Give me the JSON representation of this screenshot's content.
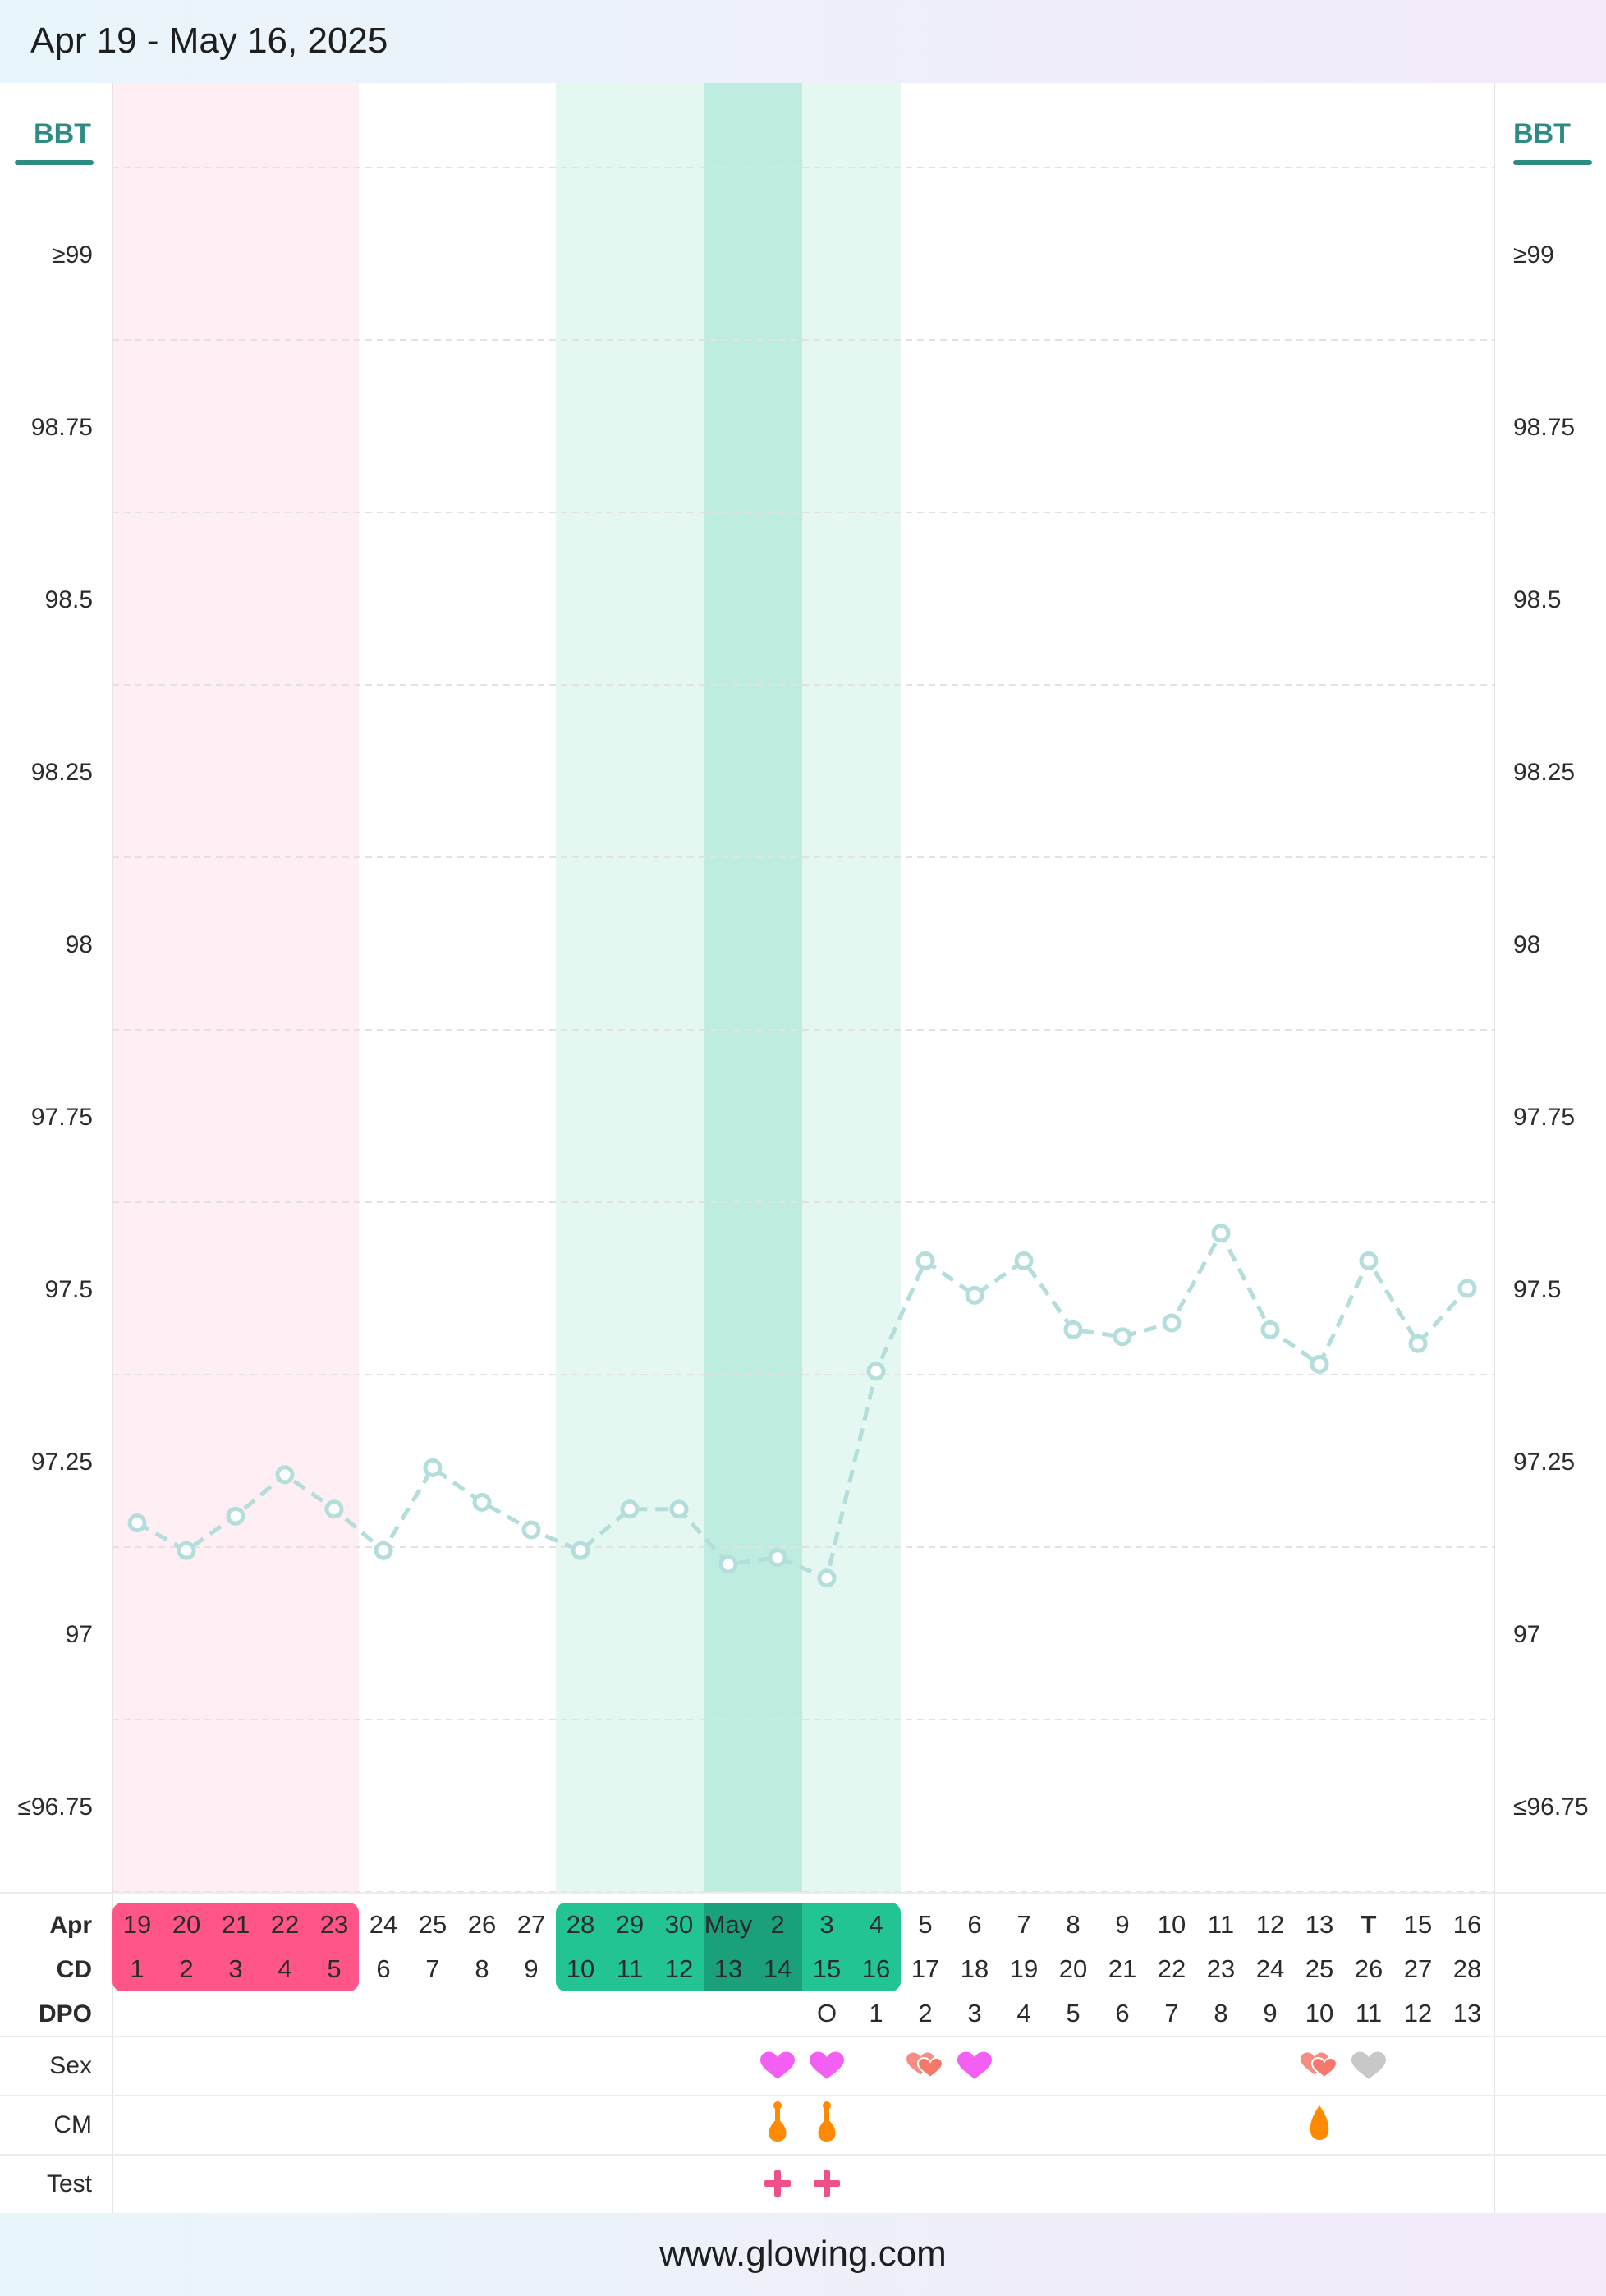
{
  "header": {
    "title": "Apr 19 - May 16, 2025"
  },
  "footer": {
    "url": "www.glowing.com"
  },
  "colors": {
    "period": "#ff5588",
    "period_bg": "#ffeef4",
    "fertile": "#22c493",
    "fertile_bg": "#e5f7f1",
    "peak_bg": "#bfece0",
    "peak": "#1aa07a",
    "bbt_line": "#b3dedb",
    "bbt_label": "#2e8b83",
    "today": "#5b5bd6",
    "sex": "#f25ff2",
    "sex_alt": "#f4796b",
    "sex_unknown": "#c8c8c8",
    "cm": "#ff8a00",
    "test": "#f0508a"
  },
  "chart_data": {
    "type": "line",
    "y_axis_title": "BBT",
    "ylim": [
      96.75,
      99
    ],
    "y_tick_labels": [
      "≥99",
      "98.75",
      "98.5",
      "98.25",
      "98",
      "97.75",
      "97.5",
      "97.25",
      "97",
      "≤96.75"
    ],
    "grid": "dashed horizontal",
    "rows": {
      "date_label": "Apr",
      "cd_label": "CD",
      "dpo_label": "DPO",
      "sex_label": "Sex",
      "cm_label": "CM",
      "test_label": "Test"
    },
    "dates": [
      "19",
      "20",
      "21",
      "22",
      "23",
      "24",
      "25",
      "26",
      "27",
      "28",
      "29",
      "30",
      "May",
      "2",
      "3",
      "4",
      "5",
      "6",
      "7",
      "8",
      "9",
      "10",
      "11",
      "12",
      "13",
      "T",
      "15",
      "16"
    ],
    "cycle_days": [
      "1",
      "2",
      "3",
      "4",
      "5",
      "6",
      "7",
      "8",
      "9",
      "10",
      "11",
      "12",
      "13",
      "14",
      "15",
      "16",
      "17",
      "18",
      "19",
      "20",
      "21",
      "22",
      "23",
      "24",
      "25",
      "26",
      "27",
      "28"
    ],
    "dpo": [
      "",
      "",
      "",
      "",
      "",
      "",
      "",
      "",
      "",
      "",
      "",
      "",
      "",
      "",
      "O",
      "1",
      "2",
      "3",
      "4",
      "5",
      "6",
      "7",
      "8",
      "9",
      "10",
      "11",
      "12",
      "13"
    ],
    "series": [
      {
        "values": [
          97.16,
          97.12,
          97.17,
          97.23,
          97.18,
          97.12,
          97.24,
          97.19,
          97.15,
          97.12,
          97.18,
          97.18,
          97.1,
          97.11,
          97.08,
          97.38,
          97.54,
          97.49,
          97.54,
          97.44,
          97.43,
          97.45,
          97.58,
          97.44,
          97.39,
          97.54,
          97.42,
          97.5
        ]
      }
    ],
    "period_days": [
      1,
      5
    ],
    "fertile_window": [
      10,
      16
    ],
    "peak_days": [
      13,
      14
    ],
    "ovulation_day": 15,
    "today_index": 26,
    "sex_events": [
      {
        "day": 14,
        "icon": "heart-icon",
        "color": "#f25ff2"
      },
      {
        "day": 15,
        "icon": "heart-icon",
        "color": "#f25ff2"
      },
      {
        "day": 17,
        "icon": "double-heart-icon",
        "color": "#f4796b"
      },
      {
        "day": 18,
        "icon": "heart-icon",
        "color": "#f25ff2"
      },
      {
        "day": 25,
        "icon": "double-heart-icon",
        "color": "#f4796b"
      },
      {
        "day": 26,
        "icon": "heart-icon",
        "color": "#c8c8c8"
      }
    ],
    "cm_events": [
      {
        "day": 14,
        "icon": "egg-white-cm-icon"
      },
      {
        "day": 15,
        "icon": "egg-white-cm-icon"
      },
      {
        "day": 25,
        "icon": "watery-cm-icon"
      }
    ],
    "test_events": [
      {
        "day": 14,
        "icon": "plus-icon",
        "result": "+"
      },
      {
        "day": 15,
        "icon": "plus-icon",
        "result": "+"
      }
    ]
  }
}
